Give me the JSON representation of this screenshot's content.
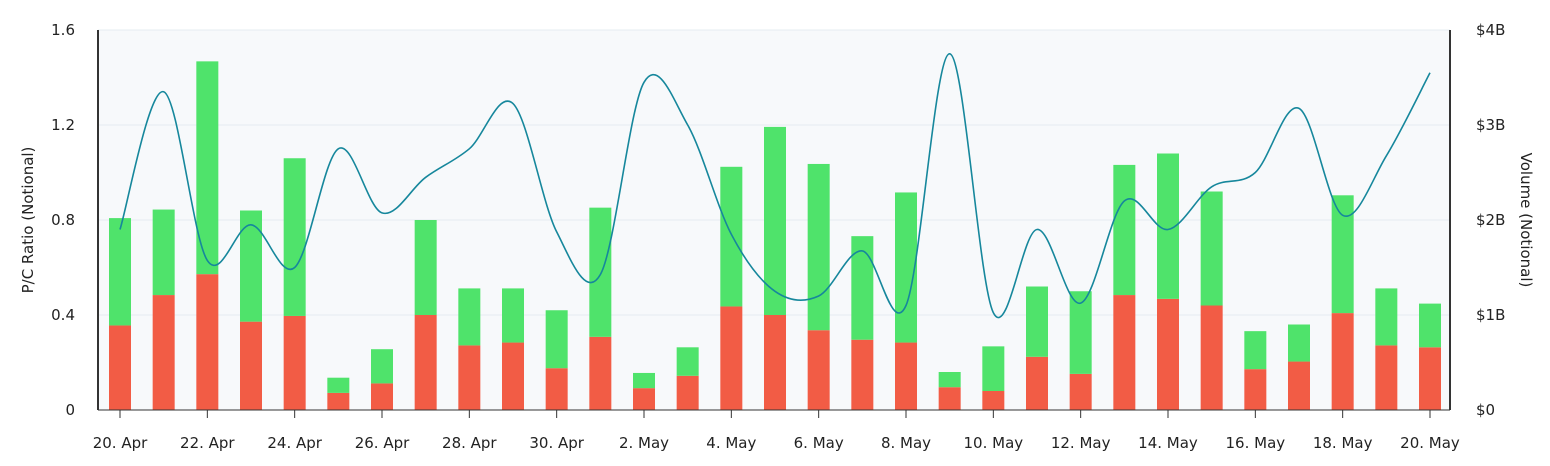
{
  "chart_data": {
    "type": "bar",
    "x": [
      "2024-04-20",
      "2024-04-21",
      "2024-04-22",
      "2024-04-23",
      "2024-04-24",
      "2024-04-25",
      "2024-04-26",
      "2024-04-27",
      "2024-04-28",
      "2024-04-29",
      "2024-04-30",
      "2024-05-01",
      "2024-05-02",
      "2024-05-03",
      "2024-05-04",
      "2024-05-05",
      "2024-05-06",
      "2024-05-07",
      "2024-05-08",
      "2024-05-09",
      "2024-05-10",
      "2024-05-11",
      "2024-05-12",
      "2024-05-13",
      "2024-05-14",
      "2024-05-15",
      "2024-05-16",
      "2024-05-17",
      "2024-05-18",
      "2024-05-19",
      "2024-05-20"
    ],
    "x_tick_labels": [
      "20. Apr",
      "22. Apr",
      "24. Apr",
      "26. Apr",
      "28. Apr",
      "30. Apr",
      "2. May",
      "4. May",
      "6. May",
      "8. May",
      "10. May",
      "12. May",
      "14. May",
      "16. May",
      "18. May",
      "20. May"
    ],
    "x_tick_dates": [
      "2024-04-20",
      "2024-04-22",
      "2024-04-24",
      "2024-04-26",
      "2024-04-28",
      "2024-04-30",
      "2024-05-02",
      "2024-05-04",
      "2024-05-06",
      "2024-05-08",
      "2024-05-10",
      "2024-05-12",
      "2024-05-14",
      "2024-05-16",
      "2024-05-18",
      "2024-05-20"
    ],
    "ylabel": "P/C Ratio (Notional)",
    "ylim": [
      0,
      1.6
    ],
    "y_ticks": [
      0,
      0.4,
      0.8,
      1.2,
      1.6
    ],
    "y_tick_labels": [
      "0",
      "0.4",
      "0.8",
      "1.2",
      "1.6"
    ],
    "y2label": "Volume (Notional)",
    "y2lim": [
      0,
      4
    ],
    "y2_ticks": [
      0,
      1,
      2,
      3,
      4
    ],
    "y2_tick_labels": [
      "$0",
      "$1B",
      "$2B",
      "$3B",
      "$4B"
    ],
    "grid": true,
    "series": [
      {
        "kind": "bar",
        "axis": "right",
        "stack": "volume",
        "color": "#f25c45",
        "values": [
          0.89,
          1.21,
          1.43,
          0.93,
          0.99,
          0.18,
          0.28,
          1.0,
          0.68,
          0.71,
          0.44,
          0.77,
          0.23,
          0.36,
          1.09,
          1.0,
          0.84,
          0.74,
          0.71,
          0.24,
          0.2,
          0.56,
          0.38,
          1.21,
          1.17,
          1.1,
          0.43,
          0.51,
          1.02,
          0.68,
          0.66
        ]
      },
      {
        "kind": "bar",
        "axis": "right",
        "stack": "volume",
        "color": "#4fe36b",
        "values": [
          1.13,
          0.9,
          2.24,
          1.17,
          1.66,
          0.16,
          0.36,
          1.0,
          0.6,
          0.57,
          0.61,
          1.36,
          0.16,
          0.3,
          1.47,
          1.98,
          1.75,
          1.09,
          1.58,
          0.16,
          0.47,
          0.74,
          0.87,
          1.37,
          1.53,
          1.2,
          0.4,
          0.39,
          1.24,
          0.6,
          0.46
        ]
      },
      {
        "kind": "line",
        "axis": "left",
        "color": "#16879c",
        "values": [
          0.76,
          1.34,
          0.63,
          0.78,
          0.6,
          1.1,
          0.83,
          0.98,
          1.1,
          1.29,
          0.75,
          0.57,
          1.38,
          1.2,
          0.74,
          0.5,
          0.48,
          0.67,
          0.44,
          1.5,
          0.41,
          0.76,
          0.45,
          0.88,
          0.76,
          0.94,
          1.0,
          1.27,
          0.82,
          1.07,
          1.42
        ]
      }
    ]
  }
}
